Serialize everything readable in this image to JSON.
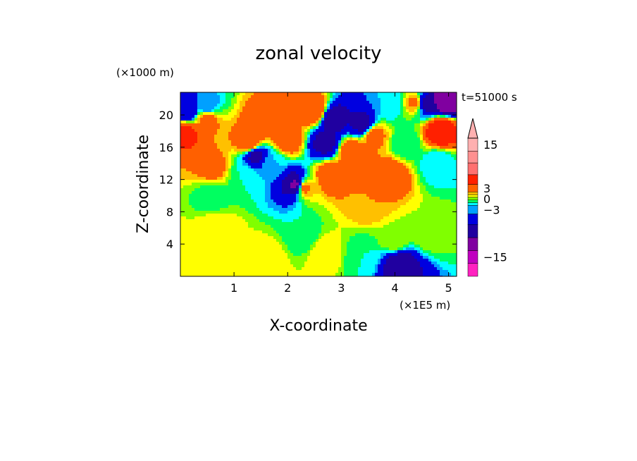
{
  "chart_data": {
    "type": "heatmap",
    "title": "zonal velocity",
    "xlabel": "X-coordinate",
    "ylabel": "Z-coordinate",
    "x_unit": "(×1E5 m)",
    "y_unit": "(×1000 m)",
    "time_label": "t=51000 s",
    "xlim": [
      0,
      5.15
    ],
    "ylim": [
      0,
      22.8
    ],
    "x_ticks": [
      1,
      2,
      3,
      4,
      5
    ],
    "x_tick_labels": [
      "1",
      "2",
      "3",
      "4",
      "5"
    ],
    "y_ticks": [
      4,
      8,
      12,
      16,
      20
    ],
    "y_tick_labels": [
      "4",
      "8",
      "12",
      "16",
      "20"
    ],
    "colorbar": {
      "levels": [
        -18,
        -15,
        -12,
        -9,
        -6,
        -3,
        -2,
        -1,
        0,
        1,
        2,
        3,
        6,
        9,
        12,
        15,
        18
      ],
      "colors": [
        "#ff22c0",
        "#c000c0",
        "#8000a0",
        "#2000a0",
        "#0000e0",
        "#00a0ff",
        "#00ffff",
        "#00ff60",
        "#80ff00",
        "#ffff00",
        "#ffc000",
        "#ff6000",
        "#ff2000",
        "#ff7070",
        "#ff9090",
        "#ffb0b0"
      ],
      "extend_max": true,
      "tick_values": [
        15,
        3,
        0,
        -3,
        -15
      ],
      "tick_labels": [
        "15",
        "3",
        "0",
        "−3",
        "−15"
      ]
    },
    "features": [
      {
        "x": 0.1,
        "z": 17.8,
        "value": 7
      },
      {
        "x": 0.5,
        "z": 19.5,
        "value": 4
      },
      {
        "x": 1.3,
        "z": 16.5,
        "value": 6
      },
      {
        "x": 1.55,
        "z": 19.0,
        "value": 5
      },
      {
        "x": 2.0,
        "z": 17.0,
        "value": 5
      },
      {
        "x": 2.5,
        "z": 20.5,
        "value": 6
      },
      {
        "x": 3.2,
        "z": 15.5,
        "value": 5
      },
      {
        "x": 3.6,
        "z": 17.5,
        "value": 4
      },
      {
        "x": 3.9,
        "z": 12.5,
        "value": 5
      },
      {
        "x": 4.85,
        "z": 18.0,
        "value": 9
      },
      {
        "x": 4.4,
        "z": 21.5,
        "value": 4
      },
      {
        "x": 0.6,
        "z": 13.5,
        "value": 4
      },
      {
        "x": 2.8,
        "z": 12.5,
        "value": 5
      },
      {
        "x": 2.3,
        "z": 11.0,
        "value": 4
      },
      {
        "x": 3.5,
        "z": 9.0,
        "value": 3
      },
      {
        "x": 0.6,
        "z": 10.0,
        "value": -1
      },
      {
        "x": 1.2,
        "z": 12.5,
        "value": -1
      },
      {
        "x": 1.7,
        "z": 14.0,
        "value": -2
      },
      {
        "x": 4.2,
        "z": 16.5,
        "value": -1
      },
      {
        "x": 4.8,
        "z": 14.0,
        "value": -2
      },
      {
        "x": 3.9,
        "z": 21.5,
        "value": -2
      },
      {
        "x": 2.3,
        "z": 5.0,
        "value": -1
      },
      {
        "x": 3.4,
        "z": 2.5,
        "value": -1
      },
      {
        "x": 4.6,
        "z": 5.5,
        "value": 1
      },
      {
        "x": 0.7,
        "z": 6.0,
        "value": 2
      },
      {
        "x": 0.3,
        "z": 2.5,
        "value": 2
      },
      {
        "x": 1.6,
        "z": 2.0,
        "value": 2
      },
      {
        "x": 2.7,
        "z": 3.0,
        "value": 2
      },
      {
        "x": 4.0,
        "z": 4.5,
        "value": 1
      },
      {
        "x": 4.1,
        "z": 1.5,
        "value": -8
      },
      {
        "x": 2.17,
        "z": 11.3,
        "value": -10
      },
      {
        "x": 2.85,
        "z": 19.5,
        "value": -8
      },
      {
        "x": 3.4,
        "z": 18.8,
        "value": -7
      },
      {
        "x": 2.7,
        "z": 16.5,
        "value": -7
      },
      {
        "x": 1.4,
        "z": 15.0,
        "value": -7
      },
      {
        "x": 4.95,
        "z": 21.8,
        "value": -12
      },
      {
        "x": 0.12,
        "z": 20.5,
        "value": -6
      },
      {
        "x": 4.55,
        "z": 21.5,
        "value": -8
      },
      {
        "x": 0.5,
        "z": 21.0,
        "value": -3
      }
    ]
  }
}
